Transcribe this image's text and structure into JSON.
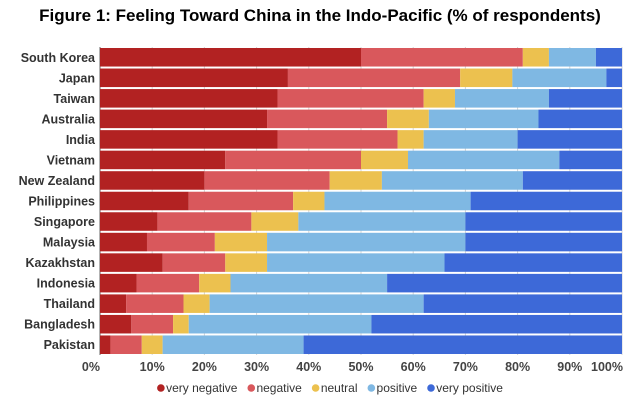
{
  "chart_data": {
    "type": "bar",
    "orientation": "horizontal",
    "stacked": true,
    "title": "Figure 1: Feeling Toward China in the Indo-Pacific (% of respondents)",
    "xlabel": "",
    "ylabel": "",
    "xlim": [
      0,
      100
    ],
    "x_ticks": [
      "0%",
      "10%",
      "20%",
      "30%",
      "40%",
      "50%",
      "60%",
      "70%",
      "80%",
      "90%",
      "100%"
    ],
    "categories": [
      "South Korea",
      "Japan",
      "Taiwan",
      "Australia",
      "India",
      "Vietnam",
      "New Zealand",
      "Philippines",
      "Singapore",
      "Malaysia",
      "Kazakhstan",
      "Indonesia",
      "Thailand",
      "Bangladesh",
      "Pakistan"
    ],
    "series": [
      {
        "name": "very negative",
        "color": "#b22222",
        "values": [
          50,
          36,
          34,
          32,
          34,
          24,
          20,
          17,
          11,
          9,
          12,
          7,
          5,
          6,
          2
        ]
      },
      {
        "name": "negative",
        "color": "#d9585c",
        "values": [
          31,
          33,
          28,
          23,
          23,
          26,
          24,
          20,
          18,
          13,
          12,
          12,
          11,
          8,
          6
        ]
      },
      {
        "name": "neutral",
        "color": "#ecc14f",
        "values": [
          5,
          10,
          6,
          8,
          5,
          9,
          10,
          6,
          9,
          10,
          8,
          6,
          5,
          3,
          4
        ]
      },
      {
        "name": "positive",
        "color": "#7fb8e3",
        "values": [
          9,
          18,
          18,
          21,
          18,
          29,
          27,
          28,
          32,
          38,
          34,
          30,
          41,
          35,
          27
        ]
      },
      {
        "name": "very positive",
        "color": "#3d69d8",
        "values": [
          5,
          3,
          14,
          16,
          20,
          12,
          19,
          29,
          30,
          30,
          34,
          45,
          38,
          48,
          61
        ]
      }
    ],
    "legend": {
      "position": "bottom",
      "items": [
        "very negative",
        "negative",
        "neutral",
        "positive",
        "very positive"
      ]
    },
    "grid": true
  }
}
